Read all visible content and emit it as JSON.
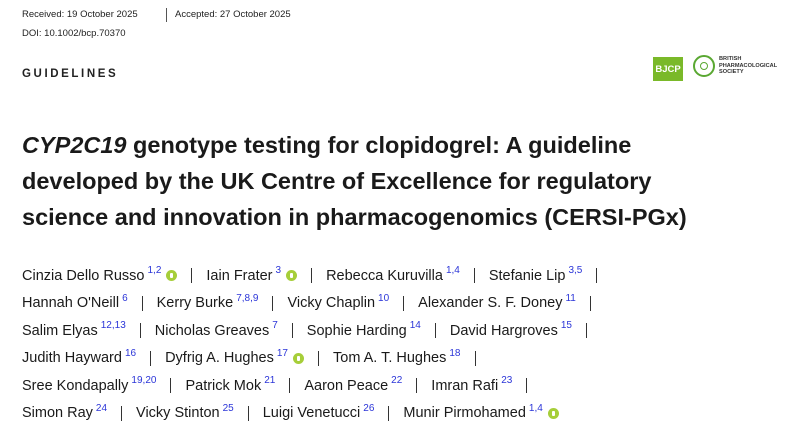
{
  "header": {
    "received": "Received: 19 October 2025",
    "accepted": "Accepted: 27 October 2025",
    "doi": "DOI: 10.1002/bcp.70370"
  },
  "section": "GUIDELINES",
  "logos": {
    "journal": "BJCP",
    "society": [
      "BRITISH",
      "PHARMACOLOGICAL",
      "SOCIETY"
    ]
  },
  "title": {
    "gene": "CYP2C19",
    "rest": " genotype testing for clopidogrel: A guideline developed by the UK Centre of Excellence for regulatory science and innovation in pharmacogenomics (CERSI-PGx)"
  },
  "authors": [
    {
      "name": "Cinzia Dello Russo",
      "affiliations": "1,2",
      "orcid": true
    },
    {
      "name": "Iain Frater",
      "affiliations": "3",
      "orcid": true
    },
    {
      "name": "Rebecca Kuruvilla",
      "affiliations": "1,4",
      "orcid": false
    },
    {
      "name": "Stefanie Lip",
      "affiliations": "3,5",
      "orcid": false
    },
    {
      "name": "Hannah O'Neill",
      "affiliations": "6",
      "orcid": false
    },
    {
      "name": "Kerry Burke",
      "affiliations": "7,8,9",
      "orcid": false
    },
    {
      "name": "Vicky Chaplin",
      "affiliations": "10",
      "orcid": false
    },
    {
      "name": "Alexander S. F. Doney",
      "affiliations": "11",
      "orcid": false
    },
    {
      "name": "Salim Elyas",
      "affiliations": "12,13",
      "orcid": false
    },
    {
      "name": "Nicholas Greaves",
      "affiliations": "7",
      "orcid": false
    },
    {
      "name": "Sophie Harding",
      "affiliations": "14",
      "orcid": false
    },
    {
      "name": "David Hargroves",
      "affiliations": "15",
      "orcid": false
    },
    {
      "name": "Judith Hayward",
      "affiliations": "16",
      "orcid": false
    },
    {
      "name": "Dyfrig A. Hughes",
      "affiliations": "17",
      "orcid": true
    },
    {
      "name": "Tom A. T. Hughes",
      "affiliations": "18",
      "orcid": false
    },
    {
      "name": "Sree Kondapally",
      "affiliations": "19,20",
      "orcid": false
    },
    {
      "name": "Patrick Mok",
      "affiliations": "21",
      "orcid": false
    },
    {
      "name": "Aaron Peace",
      "affiliations": "22",
      "orcid": false
    },
    {
      "name": "Imran Rafi",
      "affiliations": "23",
      "orcid": false
    },
    {
      "name": "Simon Ray",
      "affiliations": "24",
      "orcid": false
    },
    {
      "name": "Vicky Stinton",
      "affiliations": "25",
      "orcid": false
    },
    {
      "name": "Luigi Venetucci",
      "affiliations": "26",
      "orcid": false
    },
    {
      "name": "Munir Pirmohamed",
      "affiliations": "1,4",
      "orcid": true
    }
  ]
}
